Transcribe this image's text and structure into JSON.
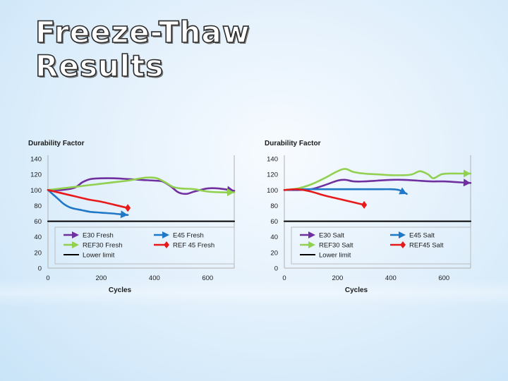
{
  "page": {
    "title_line1": "Freeze-Thaw",
    "title_line2": "Results"
  },
  "chart_data": [
    {
      "type": "line",
      "id": "fresh",
      "ylabel": "Durability Factor",
      "xlabel": "Cycles",
      "xlim": [
        0,
        700
      ],
      "ylim": [
        0,
        140
      ],
      "xticks": [
        0,
        200,
        400,
        600
      ],
      "yticks": [
        0,
        20,
        40,
        60,
        80,
        100,
        120,
        140
      ],
      "legend_columns": 2,
      "series": [
        {
          "name": "E30 Fresh",
          "color": "#7030a0",
          "marker": "arrow",
          "x": [
            0,
            50,
            100,
            130,
            160,
            200,
            250,
            300,
            350,
            400,
            430,
            460,
            490,
            520,
            550,
            600,
            640,
            700
          ],
          "y": [
            100,
            100,
            103,
            110,
            114,
            115,
            115,
            114,
            113,
            112,
            111,
            105,
            97,
            95,
            98,
            102,
            102,
            99
          ]
        },
        {
          "name": "E45 Fresh",
          "color": "#1f78c8",
          "marker": "arrow",
          "x": [
            0,
            20,
            40,
            60,
            80,
            100,
            130,
            160,
            200,
            240,
            270,
            300
          ],
          "y": [
            100,
            94,
            88,
            82,
            78,
            76,
            74,
            72,
            71,
            70,
            69,
            68
          ]
        },
        {
          "name": "REF30 Fresh",
          "color": "#92d050",
          "marker": "arrow",
          "x": [
            0,
            50,
            100,
            150,
            200,
            250,
            300,
            350,
            380,
            410,
            440,
            470,
            500,
            550,
            600,
            650,
            700
          ],
          "y": [
            100,
            102,
            104,
            106,
            108,
            110,
            112,
            115,
            116,
            115,
            110,
            104,
            102,
            101,
            98,
            97,
            97
          ]
        },
        {
          "name": "REF 45 Fresh",
          "color": "#e8191a",
          "marker": "diamond",
          "x": [
            0,
            50,
            100,
            150,
            200,
            250,
            300
          ],
          "y": [
            100,
            96,
            92,
            88,
            85,
            81,
            77
          ]
        },
        {
          "name": "Lower limit",
          "color": "#000000",
          "marker": "none",
          "x": [
            0,
            700
          ],
          "y": [
            60,
            60
          ]
        }
      ]
    },
    {
      "type": "line",
      "id": "salt",
      "ylabel": "Durability Factor",
      "xlabel": "Cycles",
      "xlim": [
        0,
        700
      ],
      "ylim": [
        0,
        140
      ],
      "xticks": [
        0,
        200,
        400,
        600
      ],
      "yticks": [
        0,
        20,
        40,
        60,
        80,
        100,
        120,
        140
      ],
      "legend_columns": 2,
      "series": [
        {
          "name": "E30 Salt",
          "color": "#7030a0",
          "marker": "arrow",
          "x": [
            0,
            50,
            100,
            150,
            200,
            230,
            260,
            300,
            350,
            400,
            450,
            500,
            550,
            600,
            650,
            700
          ],
          "y": [
            100,
            100,
            101,
            106,
            112,
            113,
            111,
            111,
            112,
            113,
            113,
            112,
            111,
            111,
            110,
            109
          ]
        },
        {
          "name": "E45 Salt",
          "color": "#1f78c8",
          "marker": "arrow",
          "x": [
            0,
            50,
            100,
            150,
            200,
            250,
            300,
            350,
            400,
            430,
            460
          ],
          "y": [
            100,
            101,
            101,
            101,
            101,
            101,
            101,
            101,
            101,
            100,
            95
          ]
        },
        {
          "name": "REF30 Salt",
          "color": "#92d050",
          "marker": "arrow",
          "x": [
            0,
            50,
            100,
            150,
            200,
            230,
            260,
            300,
            350,
            400,
            450,
            480,
            510,
            540,
            560,
            590,
            620,
            660,
            700
          ],
          "y": [
            100,
            102,
            107,
            115,
            124,
            127,
            123,
            121,
            120,
            119,
            119,
            120,
            124,
            120,
            115,
            120,
            121,
            121,
            121
          ]
        },
        {
          "name": "REF45 Salt",
          "color": "#e8191a",
          "marker": "diamond",
          "x": [
            0,
            50,
            100,
            150,
            200,
            250,
            300
          ],
          "y": [
            100,
            101,
            98,
            93,
            89,
            85,
            81
          ]
        },
        {
          "name": "Lower limit",
          "color": "#000000",
          "marker": "none",
          "x": [
            0,
            700
          ],
          "y": [
            60,
            60
          ]
        }
      ]
    }
  ]
}
